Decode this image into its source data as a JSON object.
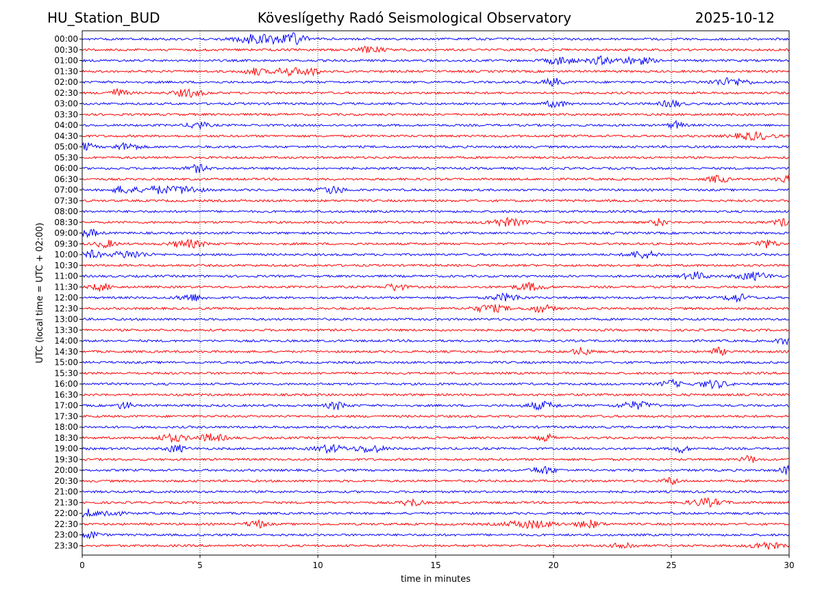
{
  "header": {
    "station": "HU_Station_BUD",
    "observatory": "Köveslígethy Radó Seismological Observatory",
    "date": "2025-10-12"
  },
  "chart_data": {
    "type": "line",
    "subtype": "helicorder",
    "title": "Köveslígethy Radó Seismological Observatory",
    "xlabel": "time in minutes",
    "ylabel": "UTC (local time = UTC + 02:00)",
    "xlim": [
      0,
      30
    ],
    "xticks": [
      0,
      5,
      10,
      15,
      20,
      25,
      30
    ],
    "xgrid": "dotted vertical at every 5 minutes",
    "trace_colors": [
      "#0000ff",
      "#ff0000"
    ],
    "row_labels": [
      "00:00",
      "00:30",
      "01:00",
      "01:30",
      "02:00",
      "02:30",
      "03:00",
      "03:30",
      "04:00",
      "04:30",
      "05:00",
      "05:30",
      "06:00",
      "06:30",
      "07:00",
      "07:30",
      "08:00",
      "08:30",
      "09:00",
      "09:30",
      "10:00",
      "10:30",
      "11:00",
      "11:30",
      "12:00",
      "12:30",
      "13:00",
      "13:30",
      "14:00",
      "14:30",
      "15:00",
      "15:30",
      "16:00",
      "16:30",
      "17:00",
      "17:30",
      "18:00",
      "18:30",
      "19:00",
      "19:30",
      "20:00",
      "20:30",
      "21:00",
      "21:30",
      "22:00",
      "22:30",
      "23:00",
      "23:30"
    ],
    "bursts_minutes": {
      "00:00": [
        [
          8.2,
          1.0
        ],
        [
          7.0,
          0.6
        ],
        [
          9.0,
          0.5
        ]
      ],
      "00:30": [
        [
          12.3,
          0.5
        ]
      ],
      "01:00": [
        [
          20.3,
          0.6
        ],
        [
          23.5,
          0.7
        ],
        [
          22.0,
          0.5
        ]
      ],
      "01:30": [
        [
          8.7,
          0.6
        ],
        [
          7.3,
          0.4
        ],
        [
          9.7,
          0.4
        ]
      ],
      "02:00": [
        [
          27.5,
          0.8
        ],
        [
          20.0,
          0.4
        ]
      ],
      "02:30": [
        [
          4.5,
          0.6
        ],
        [
          1.5,
          0.4
        ]
      ],
      "03:00": [
        [
          20.1,
          0.4
        ],
        [
          25.0,
          0.4
        ]
      ],
      "04:00": [
        [
          4.9,
          0.4
        ],
        [
          25.2,
          0.3
        ]
      ],
      "04:30": [
        [
          28.5,
          0.8
        ]
      ],
      "05:00": [
        [
          1.9,
          0.5
        ],
        [
          0.2,
          0.3
        ]
      ],
      "06:00": [
        [
          4.9,
          0.4
        ]
      ],
      "06:30": [
        [
          27.0,
          0.4
        ],
        [
          29.8,
          0.3
        ]
      ],
      "07:00": [
        [
          3.2,
          0.6
        ],
        [
          4.4,
          0.6
        ],
        [
          1.8,
          0.5
        ],
        [
          10.6,
          0.5
        ]
      ],
      "08:30": [
        [
          18.0,
          0.8
        ],
        [
          24.5,
          0.3
        ],
        [
          29.7,
          0.3
        ]
      ],
      "09:00": [
        [
          0.3,
          0.4
        ]
      ],
      "09:30": [
        [
          4.5,
          0.7
        ],
        [
          1.0,
          0.4
        ],
        [
          29.0,
          0.5
        ]
      ],
      "10:00": [
        [
          2.0,
          0.7
        ],
        [
          23.8,
          0.6
        ],
        [
          0.4,
          0.4
        ]
      ],
      "11:00": [
        [
          28.5,
          0.7
        ],
        [
          26.0,
          0.5
        ]
      ],
      "11:30": [
        [
          13.3,
          0.4
        ],
        [
          19.0,
          0.6
        ],
        [
          0.8,
          0.4
        ]
      ],
      "12:00": [
        [
          4.6,
          0.5
        ],
        [
          27.8,
          0.5
        ],
        [
          18.0,
          0.6
        ]
      ],
      "12:30": [
        [
          17.3,
          0.7
        ],
        [
          19.5,
          0.5
        ]
      ],
      "14:00": [
        [
          29.8,
          0.3
        ]
      ],
      "14:30": [
        [
          21.2,
          0.4
        ],
        [
          27.0,
          0.3
        ]
      ],
      "16:00": [
        [
          26.8,
          0.6
        ],
        [
          25.0,
          0.4
        ]
      ],
      "17:00": [
        [
          19.5,
          0.6
        ],
        [
          23.5,
          0.7
        ],
        [
          10.8,
          0.4
        ],
        [
          1.8,
          0.3
        ]
      ],
      "18:30": [
        [
          3.8,
          0.6
        ],
        [
          5.5,
          0.6
        ],
        [
          19.7,
          0.3
        ]
      ],
      "19:00": [
        [
          4.0,
          0.4
        ],
        [
          10.5,
          0.6
        ],
        [
          12.2,
          0.6
        ],
        [
          25.4,
          0.3
        ]
      ],
      "19:30": [
        [
          28.3,
          0.3
        ]
      ],
      "20:00": [
        [
          29.9,
          0.3
        ],
        [
          19.6,
          0.5
        ]
      ],
      "20:30": [
        [
          25.0,
          0.3
        ]
      ],
      "21:30": [
        [
          26.5,
          0.7
        ],
        [
          14.0,
          0.4
        ]
      ],
      "22:00": [
        [
          0.2,
          0.4
        ],
        [
          1.2,
          0.4
        ]
      ],
      "22:30": [
        [
          19.0,
          1.0
        ],
        [
          21.5,
          0.5
        ],
        [
          7.4,
          0.4
        ]
      ],
      "23:00": [
        [
          0.3,
          0.4
        ]
      ],
      "23:30": [
        [
          23.0,
          0.4
        ],
        [
          29.0,
          0.6
        ]
      ]
    }
  }
}
